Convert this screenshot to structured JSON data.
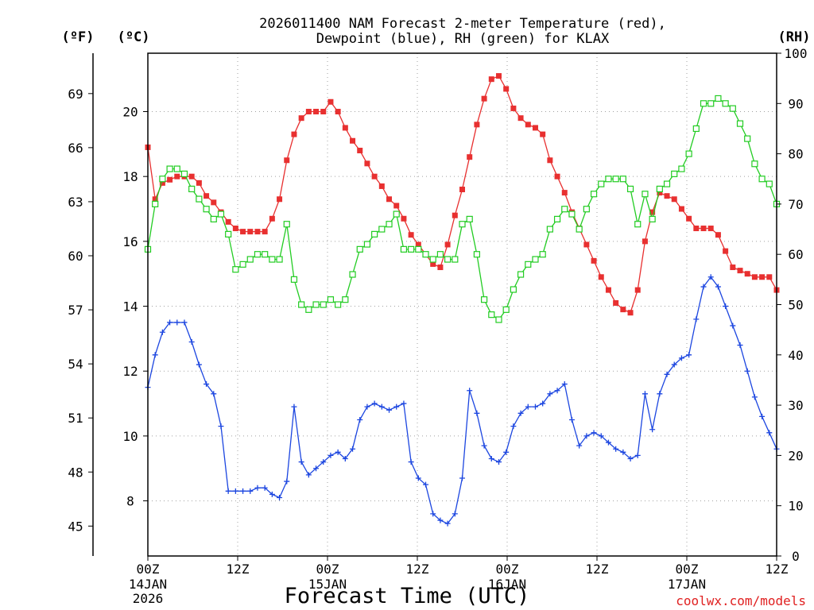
{
  "chart_data": {
    "type": "line",
    "title_line1": "2026011400 NAM Forecast 2-meter Temperature (red),",
    "title_line2": "Dewpoint (blue), RH (green) for KLAX",
    "xlabel": "Forecast Time (UTC)",
    "credit": "coolwx.com/models",
    "units": {
      "fahrenheit": "(ºF)",
      "celsius": "(ºC)",
      "rh": "(RH)"
    },
    "x_range_hours": [
      0,
      84
    ],
    "x_ticks": [
      {
        "hour": 0,
        "time": "00Z",
        "date": "14JAN",
        "year": "2026"
      },
      {
        "hour": 12,
        "time": "12Z",
        "date": "",
        "year": ""
      },
      {
        "hour": 24,
        "time": "00Z",
        "date": "15JAN",
        "year": ""
      },
      {
        "hour": 36,
        "time": "12Z",
        "date": "",
        "year": ""
      },
      {
        "hour": 48,
        "time": "00Z",
        "date": "16JAN",
        "year": ""
      },
      {
        "hour": 60,
        "time": "12Z",
        "date": "",
        "year": ""
      },
      {
        "hour": 72,
        "time": "00Z",
        "date": "17JAN",
        "year": ""
      },
      {
        "hour": 84,
        "time": "12Z",
        "date": "",
        "year": ""
      }
    ],
    "celsius_axis": {
      "range": [
        6.3,
        21.8
      ],
      "ticks": [
        8,
        10,
        12,
        14,
        16,
        18,
        20
      ]
    },
    "fahrenheit_axis": {
      "ticks": [
        45,
        48,
        51,
        54,
        57,
        60,
        63,
        66,
        69
      ]
    },
    "rh_axis": {
      "range": [
        0,
        100
      ],
      "ticks": [
        0,
        10,
        20,
        30,
        40,
        50,
        60,
        70,
        80,
        90,
        100
      ]
    },
    "series": [
      {
        "name": "Temperature",
        "units": "C",
        "axis": "celsius",
        "color": "#e83030",
        "marker": "filled-square",
        "values": [
          18.9,
          17.3,
          17.8,
          17.9,
          18.0,
          18.0,
          18.0,
          17.8,
          17.4,
          17.2,
          16.9,
          16.6,
          16.4,
          16.3,
          16.3,
          16.3,
          16.3,
          16.7,
          17.3,
          18.5,
          19.3,
          19.8,
          20.0,
          20.0,
          20.0,
          20.3,
          20.0,
          19.5,
          19.1,
          18.8,
          18.4,
          18.0,
          17.7,
          17.3,
          17.1,
          16.7,
          16.2,
          15.9,
          15.6,
          15.3,
          15.2,
          15.9,
          16.8,
          17.6,
          18.6,
          19.6,
          20.4,
          21.0,
          21.1,
          20.7,
          20.1,
          19.8,
          19.6,
          19.5,
          19.3,
          18.5,
          18.0,
          17.5,
          16.9,
          16.4,
          15.9,
          15.4,
          14.9,
          14.5,
          14.1,
          13.9,
          13.8,
          14.5,
          16.0,
          16.9,
          17.5,
          17.4,
          17.3,
          17.0,
          16.7,
          16.4,
          16.4,
          16.4,
          16.2,
          15.7,
          15.2,
          15.1,
          15.0,
          14.9,
          14.9,
          14.9,
          14.5
        ]
      },
      {
        "name": "Dewpoint",
        "units": "C",
        "axis": "celsius",
        "color": "#1c46e0",
        "marker": "plus",
        "values": [
          11.5,
          12.5,
          13.2,
          13.5,
          13.5,
          13.5,
          12.9,
          12.2,
          11.6,
          11.3,
          10.3,
          8.3,
          8.3,
          8.3,
          8.3,
          8.4,
          8.4,
          8.2,
          8.1,
          8.6,
          10.9,
          9.2,
          8.8,
          9.0,
          9.2,
          9.4,
          9.5,
          9.3,
          9.6,
          10.5,
          10.9,
          11.0,
          10.9,
          10.8,
          10.9,
          11.0,
          9.2,
          8.7,
          8.5,
          7.6,
          7.4,
          7.3,
          7.6,
          8.7,
          11.4,
          10.7,
          9.7,
          9.3,
          9.2,
          9.5,
          10.3,
          10.7,
          10.9,
          10.9,
          11.0,
          11.3,
          11.4,
          11.6,
          10.5,
          9.7,
          10.0,
          10.1,
          10.0,
          9.8,
          9.6,
          9.5,
          9.3,
          9.4,
          11.3,
          10.2,
          11.3,
          11.9,
          12.2,
          12.4,
          12.5,
          13.6,
          14.6,
          14.9,
          14.6,
          14.0,
          13.4,
          12.8,
          12.0,
          11.2,
          10.6,
          10.1,
          9.6
        ]
      },
      {
        "name": "RH",
        "units": "%",
        "axis": "rh",
        "color": "#22cc22",
        "marker": "open-square",
        "values": [
          61,
          70,
          75,
          77,
          77,
          76,
          73,
          71,
          69,
          67,
          68,
          64,
          57,
          58,
          59,
          60,
          60,
          59,
          59,
          66,
          55,
          50,
          49,
          50,
          50,
          51,
          50,
          51,
          56,
          61,
          62,
          64,
          65,
          66,
          68,
          61,
          61,
          61,
          60,
          59,
          60,
          59,
          59,
          66,
          67,
          60,
          51,
          48,
          47,
          49,
          53,
          56,
          58,
          59,
          60,
          65,
          67,
          69,
          68,
          65,
          69,
          72,
          74,
          75,
          75,
          75,
          73,
          66,
          72,
          67,
          73,
          74,
          76,
          77,
          80,
          85,
          90,
          90,
          91,
          90,
          89,
          86,
          83,
          78,
          75,
          74,
          70
        ]
      }
    ]
  }
}
